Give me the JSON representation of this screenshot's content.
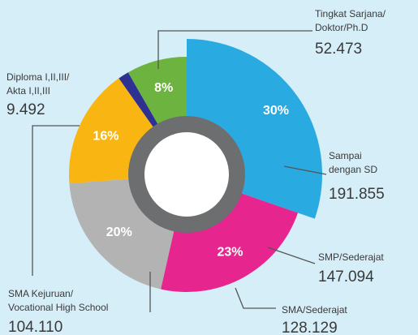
{
  "chart_data": {
    "type": "donut",
    "categories": [
      [
        "Sampai",
        "dengan SD"
      ],
      [
        "SMP/Sederajat"
      ],
      [
        "SMA/Sederajat"
      ],
      [
        "SMA Kejuruan/",
        "Vocational High School"
      ],
      [
        "Diploma I,II,III/",
        "Akta I,II,III"
      ],
      [
        "Tingkat Sarjana/",
        "Doktor/Ph.D"
      ]
    ],
    "values": [
      191855,
      147094,
      128129,
      104110,
      9492,
      52473
    ],
    "value_labels": [
      "191.855",
      "147.094",
      "128.129",
      "104.110",
      "9.492",
      "52.473"
    ],
    "percentages": [
      30,
      23,
      20,
      16,
      null,
      8
    ],
    "percentage_labels": [
      "30%",
      "23%",
      "20%",
      "16%",
      null,
      "8%"
    ],
    "colors": [
      "#29abe2",
      "#e6268e",
      "#b3b3b3",
      "#f9b612",
      "#2e3192",
      "#6cb33f"
    ]
  }
}
